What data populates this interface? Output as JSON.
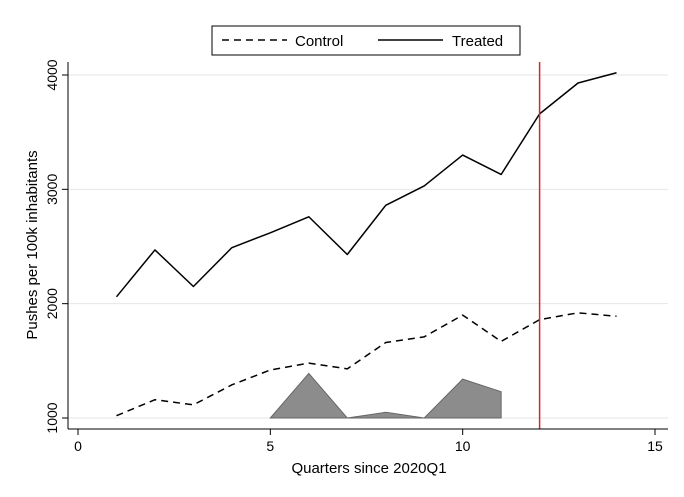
{
  "chart_data": {
    "type": "line",
    "xlabel": "Quarters since 2020Q1",
    "ylabel": "Pushes per 100k inhabitants",
    "xlim": [
      0,
      15
    ],
    "ylim": [
      900,
      4100
    ],
    "x_ticks": [
      0,
      5,
      10,
      15
    ],
    "y_ticks": [
      1000,
      2000,
      3000,
      4000
    ],
    "x_tick_labels": [
      "0",
      "5",
      "10",
      "15"
    ],
    "y_tick_labels": [
      "1000",
      "2000",
      "3000",
      "4000"
    ],
    "grid": "horizontal",
    "legend_position": "top-center",
    "series": [
      {
        "name": "Control",
        "style": "dashed",
        "color": "#000000",
        "x": [
          1,
          2,
          3,
          4,
          5,
          6,
          7,
          8,
          9,
          10,
          11,
          12,
          13,
          14
        ],
        "y": [
          1020,
          1160,
          1115,
          1290,
          1420,
          1480,
          1430,
          1660,
          1710,
          1900,
          1670,
          1860,
          1920,
          1890
        ]
      },
      {
        "name": "Treated",
        "style": "solid",
        "color": "#000000",
        "x": [
          1,
          2,
          3,
          4,
          5,
          6,
          7,
          8,
          9,
          10,
          11,
          12,
          13,
          14
        ],
        "y": [
          2060,
          2470,
          2150,
          2490,
          2620,
          2760,
          2430,
          2860,
          3030,
          3300,
          3130,
          3660,
          3930,
          4020
        ]
      }
    ],
    "area_series": {
      "color": "#8c8c8c",
      "base": 1000,
      "x": [
        5,
        6,
        7,
        8,
        9,
        10,
        11
      ],
      "y": [
        1000,
        1390,
        1000,
        1050,
        1000,
        1340,
        1230
      ]
    },
    "vertical_line": {
      "x": 12,
      "color": "#d62728"
    }
  }
}
